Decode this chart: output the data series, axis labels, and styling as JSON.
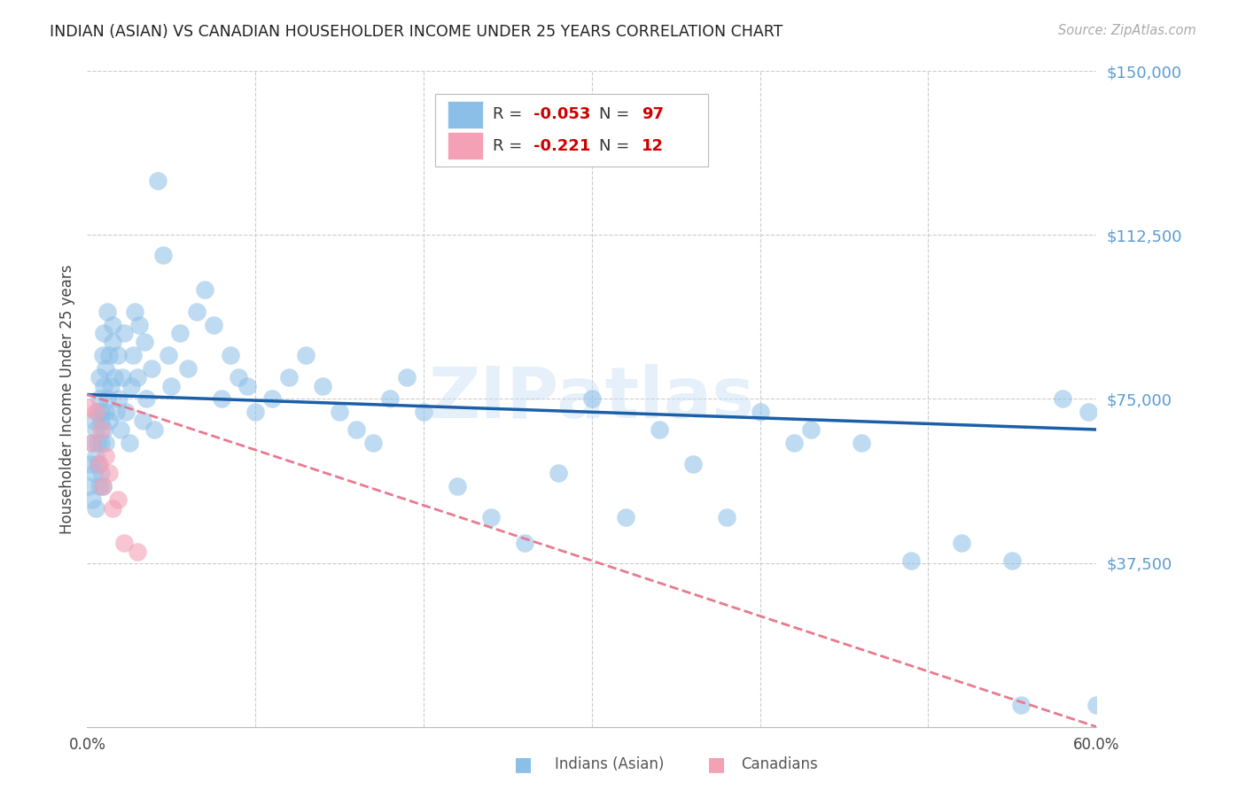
{
  "title": "INDIAN (ASIAN) VS CANADIAN HOUSEHOLDER INCOME UNDER 25 YEARS CORRELATION CHART",
  "source": "Source: ZipAtlas.com",
  "ylabel": "Householder Income Under 25 years",
  "xlim": [
    0.0,
    0.6
  ],
  "ylim": [
    0,
    150000
  ],
  "ytick_positions": [
    0,
    37500,
    75000,
    112500,
    150000
  ],
  "ytick_labels": [
    "",
    "$37,500",
    "$75,000",
    "$112,500",
    "$150,000"
  ],
  "xtick_positions": [
    0.0,
    0.1,
    0.2,
    0.3,
    0.4,
    0.5,
    0.6
  ],
  "xtick_labels": [
    "0.0%",
    "",
    "",
    "",
    "",
    "",
    "60.0%"
  ],
  "legend_r_indian": "-0.053",
  "legend_n_indian": "97",
  "legend_r_canadian": "-0.221",
  "legend_n_canadian": "12",
  "watermark": "ZIPatlas",
  "indian_color": "#8bbfe8",
  "canadian_color": "#f4a0b5",
  "trend_indian_color": "#1a5fa8",
  "trend_canadian_color": "#e87a8f",
  "background_color": "#ffffff",
  "grid_color": "#cccccc",
  "indian_x": [
    0.001,
    0.002,
    0.003,
    0.003,
    0.004,
    0.004,
    0.005,
    0.005,
    0.005,
    0.006,
    0.006,
    0.006,
    0.007,
    0.007,
    0.007,
    0.008,
    0.008,
    0.008,
    0.008,
    0.009,
    0.009,
    0.01,
    0.01,
    0.01,
    0.011,
    0.011,
    0.011,
    0.012,
    0.012,
    0.013,
    0.013,
    0.014,
    0.015,
    0.015,
    0.016,
    0.017,
    0.018,
    0.019,
    0.02,
    0.021,
    0.022,
    0.023,
    0.025,
    0.026,
    0.027,
    0.028,
    0.03,
    0.031,
    0.033,
    0.034,
    0.035,
    0.038,
    0.04,
    0.042,
    0.045,
    0.048,
    0.05,
    0.055,
    0.06,
    0.065,
    0.07,
    0.075,
    0.08,
    0.085,
    0.09,
    0.095,
    0.1,
    0.11,
    0.12,
    0.13,
    0.14,
    0.15,
    0.16,
    0.17,
    0.18,
    0.19,
    0.2,
    0.22,
    0.24,
    0.26,
    0.28,
    0.3,
    0.32,
    0.34,
    0.36,
    0.38,
    0.4,
    0.43,
    0.46,
    0.49,
    0.52,
    0.55,
    0.58,
    0.595,
    0.6,
    0.555,
    0.42
  ],
  "indian_y": [
    55000,
    60000,
    52000,
    65000,
    58000,
    70000,
    62000,
    50000,
    68000,
    72000,
    60000,
    65000,
    55000,
    80000,
    75000,
    72000,
    58000,
    70000,
    65000,
    55000,
    85000,
    68000,
    78000,
    90000,
    72000,
    82000,
    65000,
    95000,
    75000,
    85000,
    70000,
    78000,
    88000,
    92000,
    80000,
    72000,
    85000,
    75000,
    68000,
    80000,
    90000,
    72000,
    65000,
    78000,
    85000,
    95000,
    80000,
    92000,
    70000,
    88000,
    75000,
    82000,
    68000,
    125000,
    108000,
    85000,
    78000,
    90000,
    82000,
    95000,
    100000,
    92000,
    75000,
    85000,
    80000,
    78000,
    72000,
    75000,
    80000,
    85000,
    78000,
    72000,
    68000,
    65000,
    75000,
    80000,
    72000,
    55000,
    48000,
    42000,
    58000,
    75000,
    48000,
    68000,
    60000,
    48000,
    72000,
    68000,
    65000,
    38000,
    42000,
    38000,
    75000,
    72000,
    5000,
    5000,
    65000
  ],
  "canadian_x": [
    0.001,
    0.003,
    0.005,
    0.007,
    0.008,
    0.009,
    0.011,
    0.013,
    0.015,
    0.018,
    0.022,
    0.03
  ],
  "canadian_y": [
    73000,
    65000,
    72000,
    60000,
    68000,
    55000,
    62000,
    58000,
    50000,
    52000,
    42000,
    40000
  ]
}
